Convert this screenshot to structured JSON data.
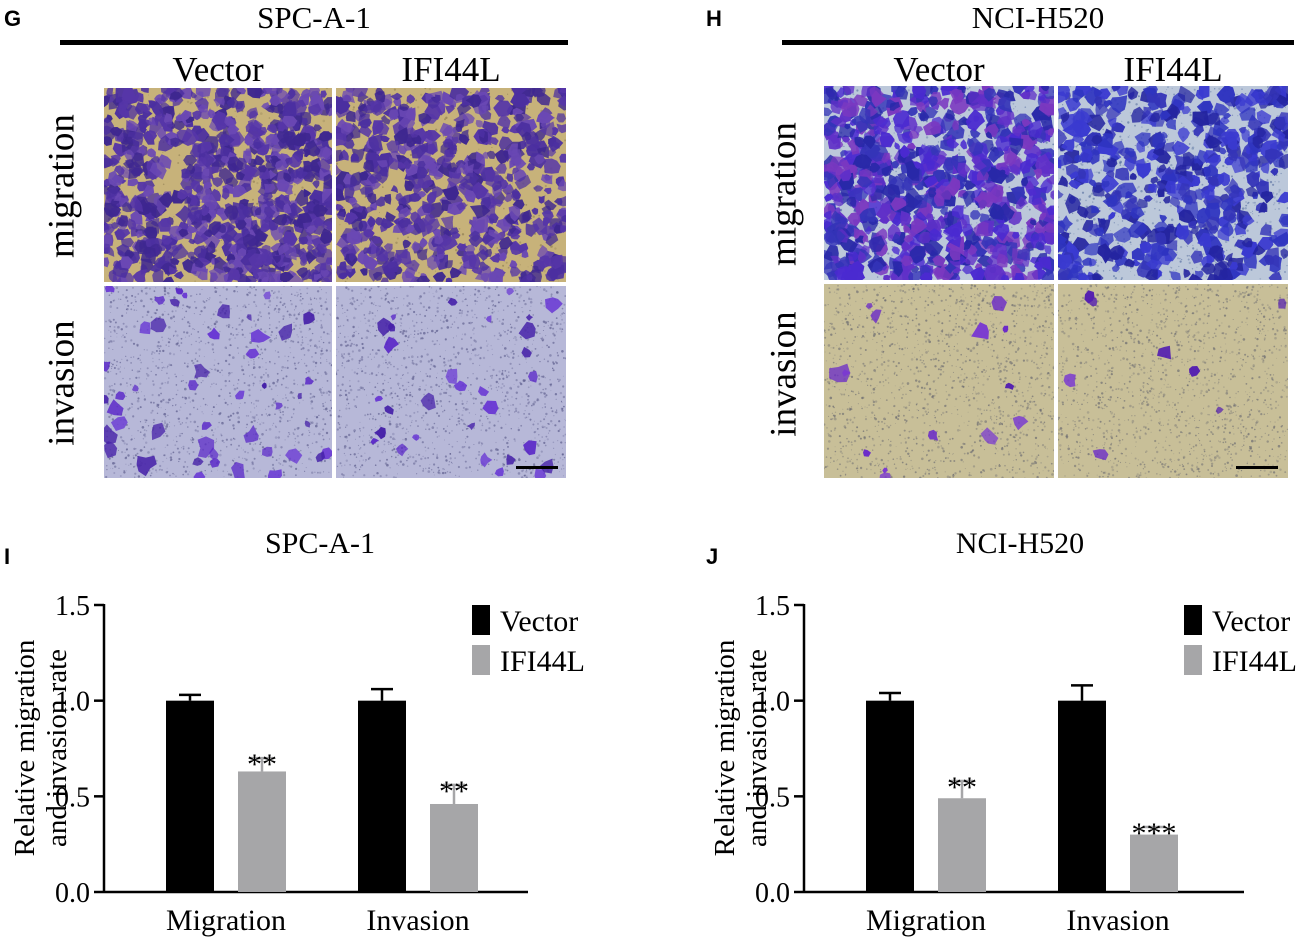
{
  "figure_g": {
    "letter": "G",
    "cell_line": "SPC-A-1",
    "columns": [
      "Vector",
      "IFI44L"
    ],
    "rows": [
      "migration",
      "invasion"
    ]
  },
  "figure_h": {
    "letter": "H",
    "cell_line": "NCI-H520",
    "columns": [
      "Vector",
      "IFI44L"
    ],
    "rows": [
      "migration",
      "invasion"
    ]
  },
  "colors": {
    "vector_bar": "#000000",
    "ifi44l_bar": "#a6a6a8",
    "stain_purple": "#4b2fa0",
    "stain_blue": "#3434b8",
    "spc_background": "#c7b27a",
    "spc_invasion_bg": "#b7b8d8",
    "h520_migration_bg": "#bcc8da",
    "h520_invasion_bg": "#c8bf98"
  },
  "chart_data": [
    {
      "type": "bar",
      "letter": "I",
      "title": "SPC-A-1",
      "categories": [
        "Migration",
        "Invasion"
      ],
      "ylabel": [
        "Relative migration",
        "and invasion rate"
      ],
      "ylim": [
        0,
        1.5
      ],
      "yticks": [
        "0.0",
        "0.5",
        "1.0",
        "1.5"
      ],
      "legend": [
        "Vector",
        "IFI44L"
      ],
      "legend_position": "top-right",
      "series": [
        {
          "name": "Vector",
          "values": [
            1.0,
            1.0
          ],
          "errors": [
            0.03,
            0.06
          ],
          "sig": [
            "",
            ""
          ]
        },
        {
          "name": "IFI44L",
          "values": [
            0.63,
            0.46
          ],
          "errors": [
            0.07,
            0.1
          ],
          "sig": [
            "**",
            "**"
          ]
        }
      ]
    },
    {
      "type": "bar",
      "letter": "J",
      "title": "NCI-H520",
      "categories": [
        "Migration",
        "Invasion"
      ],
      "ylabel": [
        "Relative migration",
        "and invasion rate"
      ],
      "ylim": [
        0,
        1.5
      ],
      "yticks": [
        "0.0",
        "0.5",
        "1.0",
        "1.5"
      ],
      "legend": [
        "Vector",
        "IFI44L"
      ],
      "legend_position": "top-right",
      "series": [
        {
          "name": "Vector",
          "values": [
            1.0,
            1.0
          ],
          "errors": [
            0.04,
            0.08
          ],
          "sig": [
            "",
            ""
          ]
        },
        {
          "name": "IFI44L",
          "values": [
            0.49,
            0.3
          ],
          "errors": [
            0.09,
            0.04
          ],
          "sig": [
            "**",
            "***"
          ]
        }
      ]
    }
  ]
}
